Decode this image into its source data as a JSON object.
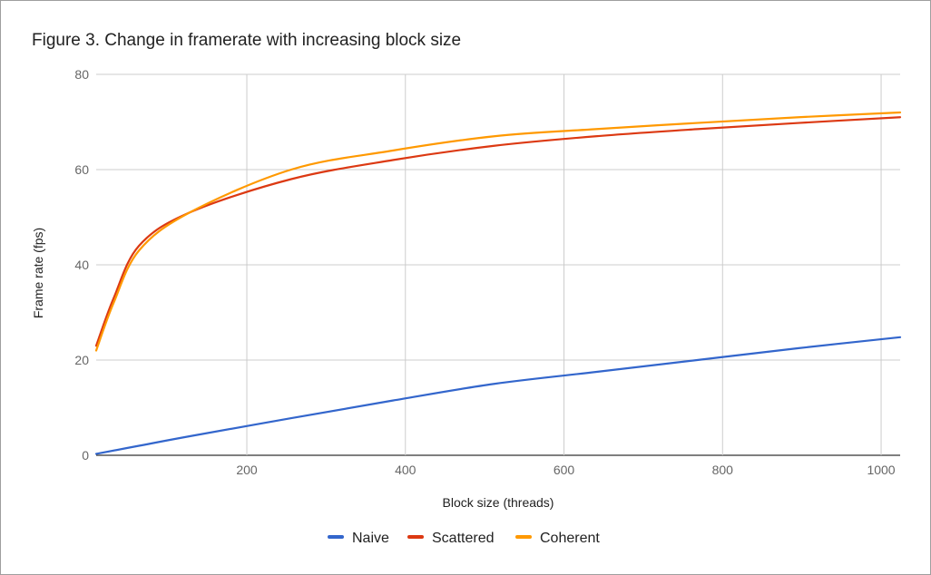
{
  "chart_data": {
    "type": "line",
    "title": "Figure 3. Change in framerate with increasing block size",
    "xlabel": "Block size (threads)",
    "ylabel": "Frame rate (fps)",
    "xlim": [
      10,
      1024
    ],
    "ylim": [
      0,
      80
    ],
    "x_ticks": [
      200,
      400,
      600,
      800,
      1000
    ],
    "y_ticks": [
      0,
      20,
      40,
      60,
      80
    ],
    "grid": true,
    "legend_position": "bottom",
    "series": [
      {
        "name": "Naive",
        "color": "#3366cc",
        "points": [
          [
            10,
            0.3
          ],
          [
            64,
            2.0
          ],
          [
            128,
            4.0
          ],
          [
            256,
            7.8
          ],
          [
            384,
            11.5
          ],
          [
            512,
            15.0
          ],
          [
            640,
            17.5
          ],
          [
            768,
            20.0
          ],
          [
            896,
            22.5
          ],
          [
            1024,
            24.8
          ]
        ]
      },
      {
        "name": "Scattered",
        "color": "#dc3912",
        "points": [
          [
            10,
            23.0
          ],
          [
            32,
            33.0
          ],
          [
            64,
            44.0
          ],
          [
            128,
            51.0
          ],
          [
            256,
            58.0
          ],
          [
            384,
            62.0
          ],
          [
            512,
            65.0
          ],
          [
            640,
            67.0
          ],
          [
            768,
            68.5
          ],
          [
            896,
            69.8
          ],
          [
            1024,
            71.0
          ]
        ]
      },
      {
        "name": "Coherent",
        "color": "#ff9900",
        "points": [
          [
            10,
            22.0
          ],
          [
            32,
            32.0
          ],
          [
            64,
            43.0
          ],
          [
            128,
            51.0
          ],
          [
            256,
            60.0
          ],
          [
            384,
            64.0
          ],
          [
            512,
            67.0
          ],
          [
            640,
            68.5
          ],
          [
            768,
            69.8
          ],
          [
            896,
            71.0
          ],
          [
            1024,
            72.0
          ]
        ]
      }
    ]
  }
}
